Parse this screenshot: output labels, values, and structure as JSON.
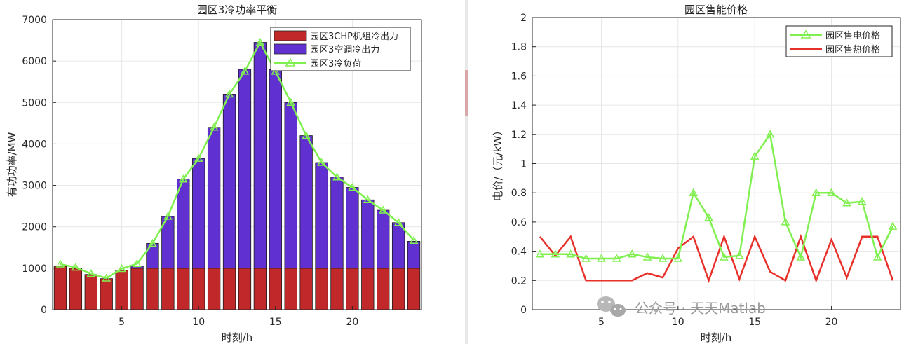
{
  "chart_data": [
    {
      "type": "bar",
      "title": "园区3冷功率平衡",
      "xlabel": "时刻/h",
      "ylabel": "有功功率/MW",
      "xlim": [
        0.5,
        24.5
      ],
      "ylim": [
        0,
        7000
      ],
      "xticks": [
        "5",
        "10",
        "15",
        "20"
      ],
      "yticks": [
        "0",
        "1000",
        "2000",
        "3000",
        "4000",
        "5000",
        "6000",
        "7000"
      ],
      "stacked": true,
      "legend_position": "top-right",
      "categories": [
        1,
        2,
        3,
        4,
        5,
        6,
        7,
        8,
        9,
        10,
        11,
        12,
        13,
        14,
        15,
        16,
        17,
        18,
        19,
        20,
        21,
        22,
        23,
        24
      ],
      "series": [
        {
          "name": "园区3CHP机组冷出力",
          "kind": "bar",
          "color": "#c0282a",
          "values": [
            1050,
            1000,
            850,
            750,
            950,
            1000,
            1000,
            1000,
            1000,
            1000,
            1000,
            1000,
            1000,
            1000,
            1000,
            1000,
            1000,
            1000,
            1000,
            1000,
            1000,
            1000,
            1000,
            1000
          ]
        },
        {
          "name": "园区3空调冷出力",
          "kind": "bar",
          "color": "#6030d0",
          "values": [
            0,
            0,
            0,
            0,
            0,
            50,
            600,
            1250,
            2150,
            2650,
            3400,
            4200,
            4800,
            5450,
            4800,
            4000,
            3200,
            2550,
            2200,
            1950,
            1650,
            1400,
            1100,
            650
          ]
        },
        {
          "name": "园区3冷负荷",
          "kind": "line",
          "color": "#80f050",
          "values": [
            1100,
            1020,
            870,
            760,
            990,
            1110,
            1600,
            2250,
            3150,
            3650,
            4400,
            5200,
            5750,
            6450,
            5750,
            5000,
            4200,
            3550,
            3200,
            2950,
            2650,
            2400,
            2100,
            1670
          ]
        }
      ]
    },
    {
      "type": "line",
      "title": "园区售能价格",
      "xlabel": "时刻/h",
      "ylabel": "电价/（元/kW）",
      "xlim": [
        0.5,
        24.5
      ],
      "ylim": [
        0,
        2
      ],
      "xticks": [
        "5",
        "10",
        "15",
        "20"
      ],
      "yticks": [
        "0",
        "0.2",
        "0.4",
        "0.6",
        "0.8",
        "1",
        "1.2",
        "1.4",
        "1.6",
        "1.8",
        "2"
      ],
      "legend_position": "top-right",
      "x": [
        1,
        2,
        3,
        4,
        5,
        6,
        7,
        8,
        9,
        10,
        11,
        12,
        13,
        14,
        15,
        16,
        17,
        18,
        19,
        20,
        21,
        22,
        23,
        24
      ],
      "series": [
        {
          "name": "园区售电价格",
          "color": "#80f050",
          "marker": "triangle",
          "values": [
            0.38,
            0.38,
            0.38,
            0.35,
            0.35,
            0.35,
            0.38,
            0.36,
            0.35,
            0.35,
            0.8,
            0.63,
            0.36,
            0.37,
            1.05,
            1.2,
            0.6,
            0.36,
            0.8,
            0.8,
            0.73,
            0.74,
            0.36,
            0.57
          ]
        },
        {
          "name": "园区售热价格",
          "color": "#e8302a",
          "marker": "none",
          "values": [
            0.5,
            0.37,
            0.5,
            0.2,
            0.2,
            0.2,
            0.2,
            0.25,
            0.22,
            0.42,
            0.5,
            0.2,
            0.5,
            0.21,
            0.5,
            0.26,
            0.2,
            0.5,
            0.2,
            0.48,
            0.22,
            0.5,
            0.5,
            0.2
          ]
        }
      ]
    }
  ],
  "watermark": {
    "text": "公众号 · 天天Matlab",
    "icon": "wechat-icon"
  }
}
